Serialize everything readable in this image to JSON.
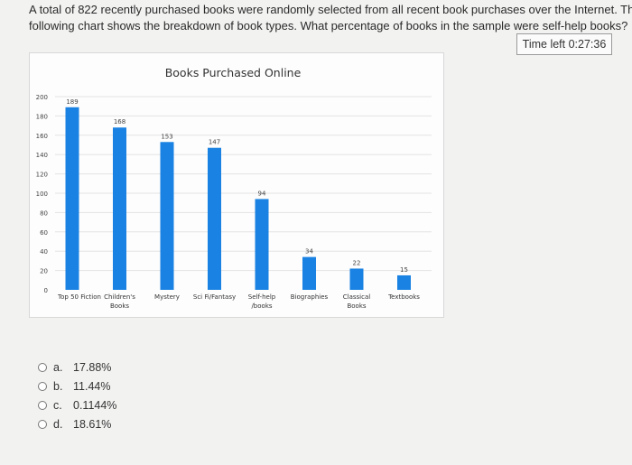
{
  "question": {
    "line1": "A total of  822 recently purchased books were randomly selected from all recent book purchases over the Internet. The",
    "line2": "following chart shows the breakdown of book types. What percentage of books in the sample were self-help books?"
  },
  "timer": {
    "label": "Time left 0:27:36"
  },
  "chart_data": {
    "type": "bar",
    "title": "Books Purchased Online",
    "categories": [
      [
        "Top 50 Fiction"
      ],
      [
        "Children's",
        "Books"
      ],
      [
        "Mystery"
      ],
      [
        "Sci Fi/Fantasy"
      ],
      [
        "Self-help",
        "/books"
      ],
      [
        "Biographies"
      ],
      [
        "Classical",
        "Books"
      ],
      [
        "Textbooks"
      ]
    ],
    "values": [
      189,
      168,
      153,
      147,
      94,
      34,
      22,
      15
    ],
    "ylim": [
      0,
      200
    ],
    "yticks": [
      0,
      20,
      40,
      60,
      80,
      100,
      120,
      140,
      160,
      180,
      200
    ],
    "xlabel": "",
    "ylabel": "",
    "grid": true,
    "bar_color": "#1a82e2"
  },
  "options": [
    {
      "letter": "a.",
      "text": "17.88%"
    },
    {
      "letter": "b.",
      "text": "11.44%"
    },
    {
      "letter": "c.",
      "text": "0.1144%"
    },
    {
      "letter": "d.",
      "text": "18.61%"
    }
  ]
}
